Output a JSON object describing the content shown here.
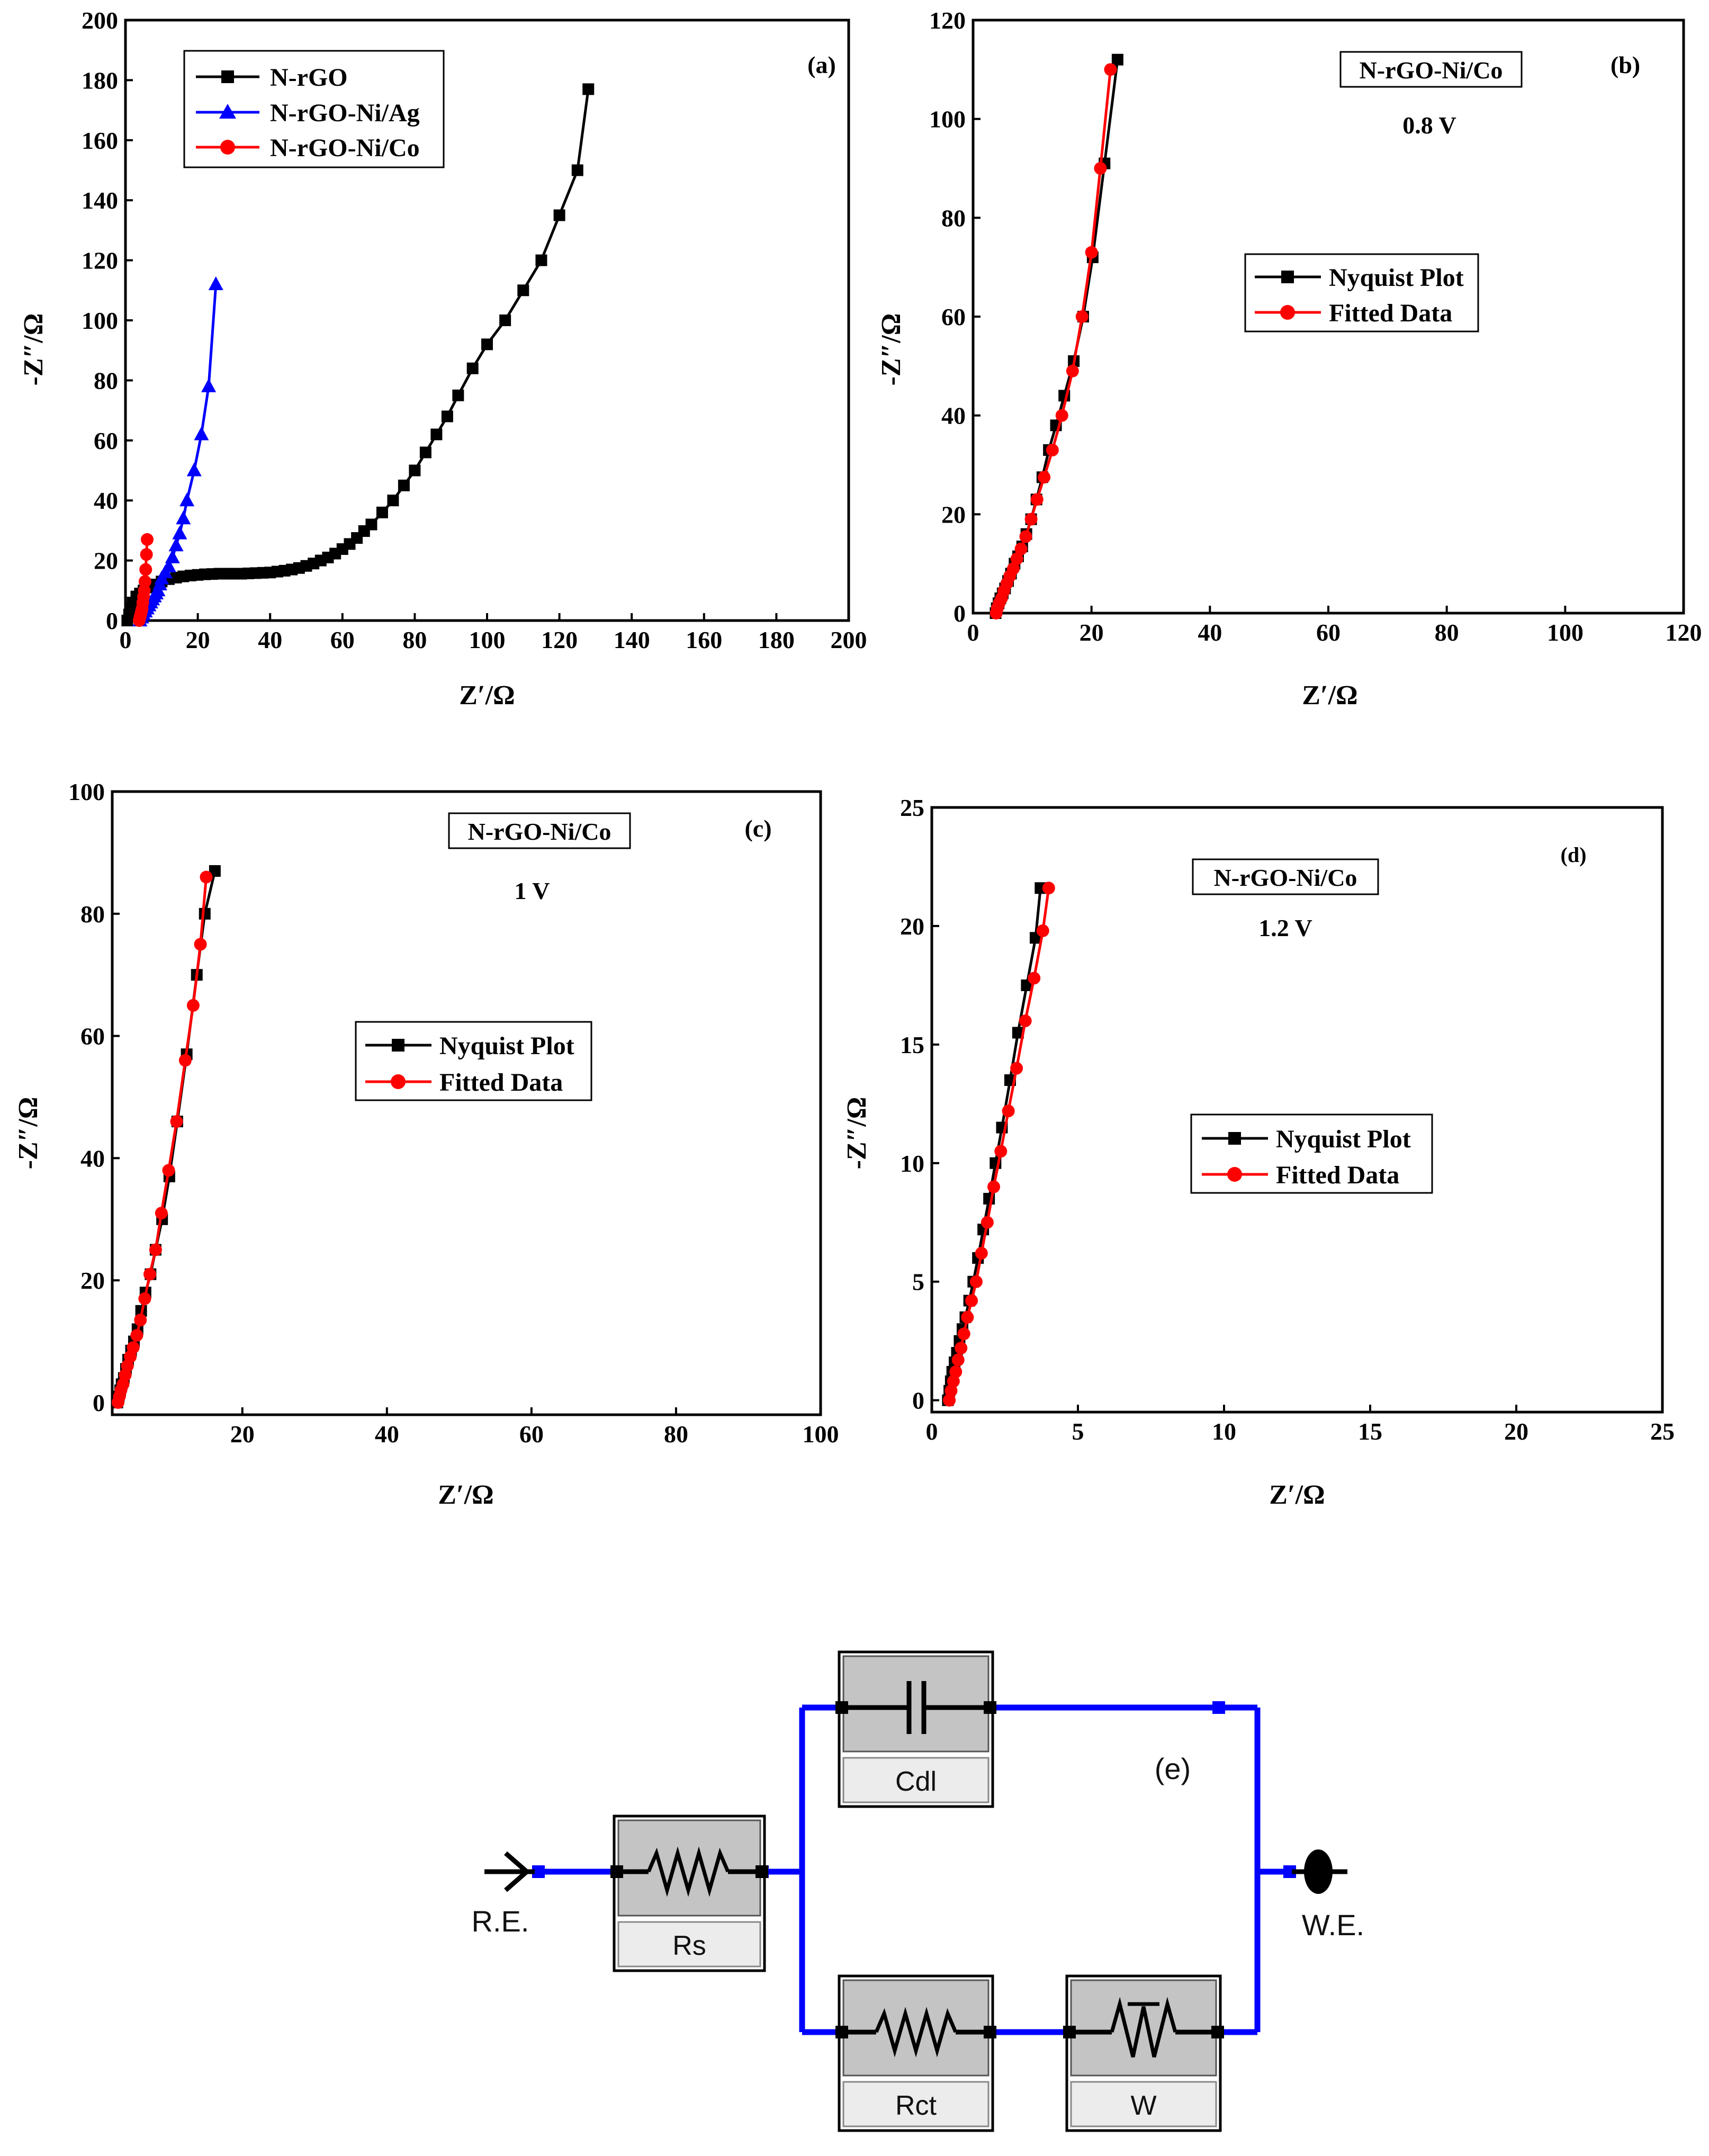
{
  "chart_data": [
    {
      "id": "a",
      "type": "line",
      "panel_label": "(a)",
      "xlabel": "Z′/Ω",
      "ylabel": "-Z″/Ω",
      "xlim": [
        0,
        200
      ],
      "ylim": [
        0,
        200
      ],
      "xticks": [
        0,
        20,
        40,
        60,
        80,
        100,
        120,
        140,
        160,
        180,
        200
      ],
      "yticks": [
        0,
        20,
        40,
        60,
        80,
        100,
        120,
        140,
        160,
        180,
        200
      ],
      "legend_position": "top-left",
      "series": [
        {
          "name": "N-rGO",
          "color": "#000000",
          "marker": "square",
          "x": [
            0.5,
            1,
            1.5,
            2,
            3,
            4,
            5,
            6,
            7,
            8,
            10,
            12,
            14,
            16,
            18,
            20,
            22,
            24,
            26,
            28,
            30,
            32,
            34,
            36,
            38,
            40,
            42,
            44,
            46,
            48,
            50,
            52,
            54,
            56,
            58,
            60,
            62,
            64,
            66,
            68,
            71,
            74,
            77,
            80,
            83,
            86,
            89,
            92,
            96,
            100,
            105,
            110,
            115,
            120,
            125,
            128
          ],
          "y": [
            0,
            2,
            4,
            6,
            8,
            9,
            10,
            11,
            11.5,
            12,
            13,
            13.8,
            14.3,
            14.7,
            15,
            15.2,
            15.4,
            15.5,
            15.6,
            15.6,
            15.6,
            15.6,
            15.7,
            15.8,
            15.9,
            16,
            16.3,
            16.6,
            17,
            17.5,
            18.2,
            19,
            20,
            21,
            22.3,
            23.8,
            25.5,
            27.5,
            29.8,
            32,
            36,
            40,
            45,
            50,
            56,
            62,
            68,
            75,
            84,
            92,
            100,
            110,
            120,
            135,
            150,
            177
          ]
        },
        {
          "name": "N-rGO-Ni/Ag",
          "color": "#0000ff",
          "marker": "triangle",
          "x": [
            4,
            4.5,
            5,
            5.5,
            6,
            6.5,
            7,
            7.5,
            8,
            8.5,
            9,
            9.5,
            10,
            11,
            12,
            13,
            14,
            15,
            16,
            17,
            19,
            21,
            23,
            25
          ],
          "y": [
            0,
            1,
            2,
            3,
            4,
            5,
            6,
            7,
            8,
            9,
            10,
            12,
            14,
            16,
            18,
            21,
            25,
            29,
            34,
            40,
            50,
            62,
            78,
            112
          ]
        },
        {
          "name": "N-rGO-Ni/Co",
          "color": "#ff0000",
          "marker": "circle",
          "x": [
            3.8,
            4,
            4.2,
            4.4,
            4.6,
            4.8,
            5,
            5.2,
            5.4,
            5.6,
            5.8,
            6
          ],
          "y": [
            0,
            1,
            2,
            3,
            4,
            6,
            8,
            10,
            13,
            17,
            22,
            27
          ]
        }
      ]
    },
    {
      "id": "b",
      "type": "line",
      "panel_label": "(b)",
      "sample_label": "N-rGO-Ni/Co",
      "potential_label": "0.8 V",
      "xlabel": "Z′/Ω",
      "ylabel": "-Z″/Ω",
      "xlim": [
        0,
        120
      ],
      "ylim": [
        0,
        120
      ],
      "xticks": [
        0,
        20,
        40,
        60,
        80,
        100,
        120
      ],
      "yticks": [
        0,
        20,
        40,
        60,
        80,
        100,
        120
      ],
      "legend_position": "center-left",
      "series": [
        {
          "name": "Nyquist Plot",
          "color": "#000000",
          "marker": "square",
          "x": [
            3.8,
            4,
            4.3,
            4.6,
            5,
            5.4,
            5.9,
            6.4,
            7,
            7.6,
            8.3,
            9,
            9.8,
            10.7,
            11.7,
            12.8,
            14,
            15.4,
            17,
            18.6,
            20.2,
            22.2,
            24.4
          ],
          "y": [
            0,
            1,
            2,
            3,
            4,
            5,
            6.5,
            8,
            10,
            11.5,
            13.5,
            16,
            19,
            23,
            27.5,
            33,
            38,
            44,
            51,
            60,
            72,
            91,
            112
          ]
        },
        {
          "name": "Fitted Data",
          "color": "#ff0000",
          "marker": "circle",
          "x": [
            3.9,
            4.1,
            4.4,
            4.8,
            5.2,
            5.7,
            6.2,
            6.8,
            7.4,
            8.1,
            8.9,
            9.8,
            10.8,
            12,
            13.4,
            15,
            16.8,
            18.4,
            20,
            21.5,
            23.2
          ],
          "y": [
            0,
            1,
            2,
            3,
            4.5,
            6,
            7.5,
            9,
            11,
            13,
            15.5,
            19,
            23,
            27.5,
            33,
            40,
            49,
            60,
            73,
            90,
            110
          ]
        }
      ]
    },
    {
      "id": "c",
      "type": "line",
      "panel_label": "(c)",
      "sample_label": "N-rGO-Ni/Co",
      "potential_label": "1 V",
      "xlabel": "Z′/Ω",
      "ylabel": "-Z″/Ω",
      "xlim": [
        2,
        100
      ],
      "ylim": [
        -2,
        100
      ],
      "xticks": [
        20,
        40,
        60,
        80,
        100
      ],
      "yticks": [
        0,
        20,
        40,
        60,
        80,
        100
      ],
      "legend_position": "center-left",
      "series": [
        {
          "name": "Nyquist Plot",
          "color": "#000000",
          "marker": "square",
          "x": [
            2.7,
            2.9,
            3.1,
            3.3,
            3.6,
            3.9,
            4.2,
            4.6,
            5,
            5.5,
            6,
            6.6,
            7.3,
            8,
            8.9,
            9.9,
            11,
            12.3,
            13.7,
            14.8,
            16.2
          ],
          "y": [
            0,
            1,
            2,
            3,
            4,
            5.5,
            7,
            8.5,
            10,
            12,
            15,
            18,
            21,
            25,
            30,
            37,
            46,
            57,
            70,
            80,
            87
          ]
        },
        {
          "name": "Fitted Data",
          "color": "#ff0000",
          "marker": "circle",
          "x": [
            2.8,
            3,
            3.2,
            3.5,
            3.8,
            4.1,
            4.5,
            4.9,
            5.4,
            5.9,
            6.5,
            7.2,
            8,
            8.8,
            9.8,
            10.9,
            12.1,
            13.2,
            14.2,
            15
          ],
          "y": [
            0,
            1,
            2,
            3,
            4.5,
            6,
            7.5,
            9,
            11,
            13.5,
            17,
            21,
            25,
            31,
            38,
            46,
            56,
            65,
            75,
            86
          ]
        }
      ]
    },
    {
      "id": "d",
      "type": "line",
      "panel_label": "(d)",
      "sample_label": "N-rGO-Ni/Co",
      "potential_label": "1.2 V",
      "xlabel": "Z′/Ω",
      "ylabel": "-Z″/Ω",
      "xlim": [
        0,
        25
      ],
      "ylim": [
        -0.5,
        25
      ],
      "xticks": [
        0,
        5,
        10,
        15,
        20,
        25
      ],
      "yticks": [
        0,
        5,
        10,
        15,
        20,
        25
      ],
      "legend_position": "center-left",
      "series": [
        {
          "name": "Nyquist Plot",
          "color": "#000000",
          "marker": "square",
          "x": [
            0.55,
            0.6,
            0.65,
            0.7,
            0.78,
            0.86,
            0.95,
            1.05,
            1.15,
            1.28,
            1.42,
            1.58,
            1.76,
            1.96,
            2.18,
            2.4,
            2.68,
            2.95,
            3.25,
            3.55,
            3.72
          ],
          "y": [
            0,
            0.4,
            0.8,
            1.2,
            1.6,
            2,
            2.5,
            3,
            3.5,
            4.2,
            5,
            6,
            7.2,
            8.5,
            10,
            11.5,
            13.5,
            15.5,
            17.5,
            19.5,
            21.6
          ]
        },
        {
          "name": "Fitted Data",
          "color": "#ff0000",
          "marker": "circle",
          "x": [
            0.6,
            0.66,
            0.74,
            0.82,
            0.9,
            1,
            1.1,
            1.22,
            1.36,
            1.52,
            1.7,
            1.9,
            2.12,
            2.36,
            2.62,
            2.9,
            3.2,
            3.5,
            3.8,
            4
          ],
          "y": [
            0,
            0.4,
            0.8,
            1.2,
            1.7,
            2.2,
            2.8,
            3.5,
            4.2,
            5,
            6.2,
            7.5,
            9,
            10.5,
            12.2,
            14,
            16,
            17.8,
            19.8,
            21.6
          ]
        }
      ]
    }
  ],
  "circuit": {
    "panel_label": "(e)",
    "reference_electrode": "R.E.",
    "working_electrode": "W.E.",
    "components": {
      "rs": "Rs",
      "cdl": "Cdl",
      "rct": "Rct",
      "w": "W"
    },
    "wire_color": "#0000ff"
  }
}
